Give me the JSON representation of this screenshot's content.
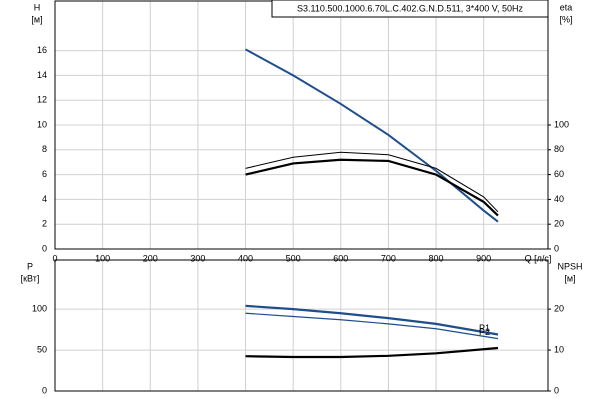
{
  "chart_data": [
    {
      "type": "line",
      "title": "S3.110.500.1000.6.70L.C.402.G.N.D.511, 3*400 V, 50Hz",
      "xlabel": "Q [л/с]",
      "ylabel": [
        "H",
        "[м]"
      ],
      "y2label": [
        "eta",
        "[%]"
      ],
      "x": [
        400,
        500,
        600,
        700,
        800,
        900,
        930
      ],
      "xlim": [
        0,
        1035
      ],
      "xticks": [
        0,
        100,
        200,
        300,
        400,
        500,
        600,
        700,
        800,
        900
      ],
      "ylim": [
        0,
        20
      ],
      "yticks": [
        0,
        2,
        4,
        6,
        8,
        10,
        12,
        14,
        16
      ],
      "y2lim": [
        0,
        200
      ],
      "y2ticks": [
        0,
        20,
        40,
        60,
        80,
        100
      ],
      "grid": true,
      "series": [
        {
          "color": "#1f4e8c",
          "values": [
            16.1,
            14.0,
            11.7,
            9.2,
            6.3,
            3.1,
            2.2
          ]
        },
        {
          "color": "#000000",
          "axis": "y2",
          "values": [
            65,
            74,
            78,
            76,
            65,
            42,
            30
          ]
        },
        {
          "color": "#000000",
          "axis": "y2",
          "values": [
            60,
            69,
            72,
            71,
            60,
            38,
            27
          ]
        }
      ]
    },
    {
      "type": "line",
      "ylabel": [
        "P",
        "[кВт]"
      ],
      "y2label": [
        "NPSH",
        "[м]"
      ],
      "x": [
        400,
        500,
        600,
        700,
        800,
        930
      ],
      "xlim": [
        0,
        1035
      ],
      "ylim": [
        0,
        160
      ],
      "yticks": [
        0,
        50,
        100
      ],
      "y2lim": [
        0,
        32
      ],
      "y2ticks": [
        0,
        10,
        20
      ],
      "grid": true,
      "series": [
        {
          "name": "P1",
          "color": "#1f4e8c",
          "values": [
            104,
            100,
            95,
            89,
            82,
            69
          ]
        },
        {
          "name": "P2",
          "color": "#1f4e8c",
          "values": [
            95,
            91,
            87,
            82,
            76,
            64
          ]
        },
        {
          "color": "#000000",
          "axis": "y2",
          "values": [
            8.5,
            8.3,
            8.3,
            8.6,
            9.2,
            10.5
          ]
        }
      ]
    }
  ]
}
